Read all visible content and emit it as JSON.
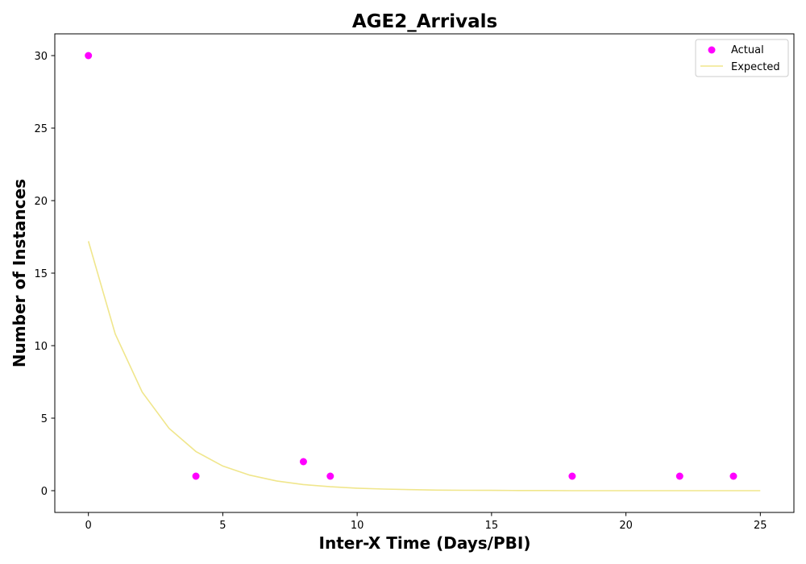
{
  "chart_data": {
    "type": "scatter",
    "title": "AGE2_Arrivals",
    "xlabel": "Inter-X Time (Days/PBI)",
    "ylabel": "Number of Instances",
    "xlim": [
      -1.25,
      26.25
    ],
    "ylim": [
      -1.5,
      31.5
    ],
    "xticks": [
      0,
      5,
      10,
      15,
      20,
      25
    ],
    "yticks": [
      0,
      5,
      10,
      15,
      20,
      25,
      30
    ],
    "grid": false,
    "legend_position": "top-right",
    "series": [
      {
        "name": "Actual",
        "kind": "scatter",
        "color": "#ff00ff",
        "points": [
          {
            "x": 0,
            "y": 30
          },
          {
            "x": 4,
            "y": 1
          },
          {
            "x": 8,
            "y": 2
          },
          {
            "x": 9,
            "y": 1
          },
          {
            "x": 18,
            "y": 1
          },
          {
            "x": 22,
            "y": 1
          },
          {
            "x": 24,
            "y": 1
          }
        ]
      },
      {
        "name": "Expected",
        "kind": "line",
        "color": "#f0e68c",
        "x": [
          0,
          1,
          2,
          3,
          4,
          5,
          6,
          7,
          8,
          9,
          10,
          11,
          12,
          13,
          14,
          15,
          16,
          17,
          18,
          19,
          20,
          21,
          22,
          23,
          24,
          25
        ],
        "y": [
          17.2,
          10.8,
          6.8,
          4.3,
          2.7,
          1.7,
          1.07,
          0.67,
          0.42,
          0.27,
          0.17,
          0.11,
          0.07,
          0.04,
          0.03,
          0.02,
          0.01,
          0.01,
          0.0,
          0.0,
          0.0,
          0.0,
          0.0,
          0.0,
          0.0,
          0.0
        ]
      }
    ]
  }
}
